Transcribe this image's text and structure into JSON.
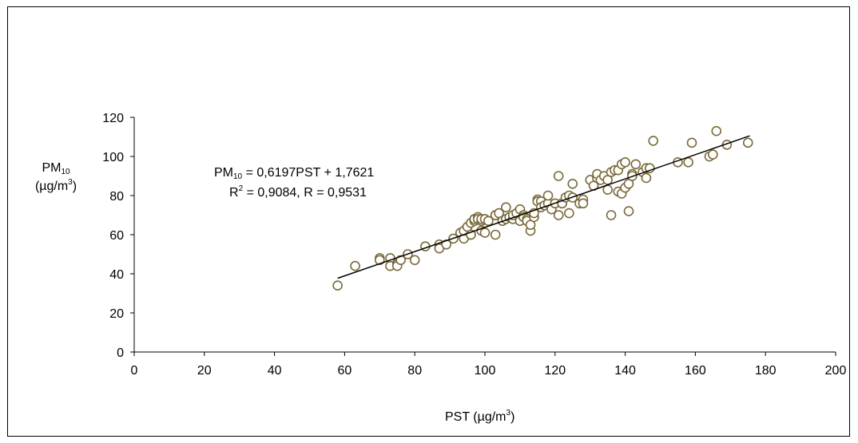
{
  "chart_data": {
    "type": "scatter",
    "title": "",
    "xlabel": {
      "text": "PST (µg/m",
      "sup": "3",
      "close": ")"
    },
    "ylabel": {
      "main": "PM",
      "sub": "10",
      "unit": "(µg/m",
      "sup": "3",
      "close": ")"
    },
    "xlim": [
      0,
      200
    ],
    "ylim": [
      0,
      120
    ],
    "xticks": [
      0,
      20,
      40,
      60,
      80,
      100,
      120,
      140,
      160,
      180,
      200
    ],
    "yticks": [
      0,
      20,
      40,
      60,
      80,
      100,
      120
    ],
    "grid": false,
    "legend": "none",
    "marker_color": "#7a6a3a",
    "marker_fill": "#ffffff",
    "annotation": {
      "line1": {
        "pre": "PM",
        "sub": "10",
        "post": " = 0,6197PST + 1,7621"
      },
      "line2": {
        "pre": "R",
        "sup": "2",
        "post": " = 0,9084, R = 0,9531"
      }
    },
    "trendline": {
      "slope": 0.6197,
      "intercept": 1.7621,
      "x_start": 58,
      "x_end": 175.5
    },
    "series": [
      {
        "x": [
          58,
          63,
          70,
          70,
          73,
          73,
          75,
          75,
          76,
          78,
          80,
          83,
          87,
          87,
          89,
          91,
          93,
          94,
          94,
          95,
          96,
          96,
          96,
          97,
          97,
          97,
          98,
          98,
          99,
          99,
          99,
          100,
          100,
          101,
          103,
          103,
          103,
          104,
          105,
          106,
          106,
          107,
          108,
          108,
          109,
          110,
          110,
          111,
          111,
          112,
          112,
          113,
          113,
          114,
          114,
          115,
          115,
          116,
          116,
          117,
          118,
          118,
          119,
          120,
          121,
          121,
          122,
          122,
          123,
          124,
          124,
          125,
          125,
          127,
          128,
          128,
          130,
          131,
          132,
          132,
          133,
          134,
          135,
          135,
          136,
          136,
          137,
          138,
          138,
          139,
          139,
          140,
          140,
          141,
          141,
          142,
          142,
          143,
          145,
          146,
          146,
          147,
          148,
          155,
          158,
          159,
          164,
          165,
          166,
          169,
          175
        ],
        "y": [
          34,
          44,
          48,
          47,
          48,
          44,
          45,
          44,
          47,
          50,
          47,
          54,
          55,
          53,
          55,
          58,
          61,
          58,
          62,
          64,
          60,
          60,
          66,
          68,
          67,
          68,
          69,
          68,
          67,
          62,
          68,
          68,
          61,
          67,
          60,
          70,
          70,
          71,
          67,
          74,
          68,
          69,
          68,
          70,
          71,
          67,
          73,
          70,
          69,
          68,
          67,
          62,
          65,
          69,
          71,
          78,
          77,
          77,
          74,
          75,
          76,
          80,
          73,
          76,
          70,
          90,
          76,
          76,
          79,
          71,
          80,
          79,
          86,
          76,
          78,
          76,
          88,
          85,
          89,
          91,
          88,
          90,
          83,
          88,
          70,
          92,
          93,
          82,
          93,
          96,
          81,
          97,
          84,
          72,
          86,
          91,
          90,
          96,
          92,
          94,
          89,
          94,
          108,
          97,
          97,
          107,
          100,
          101,
          113,
          106,
          107
        ]
      }
    ]
  }
}
